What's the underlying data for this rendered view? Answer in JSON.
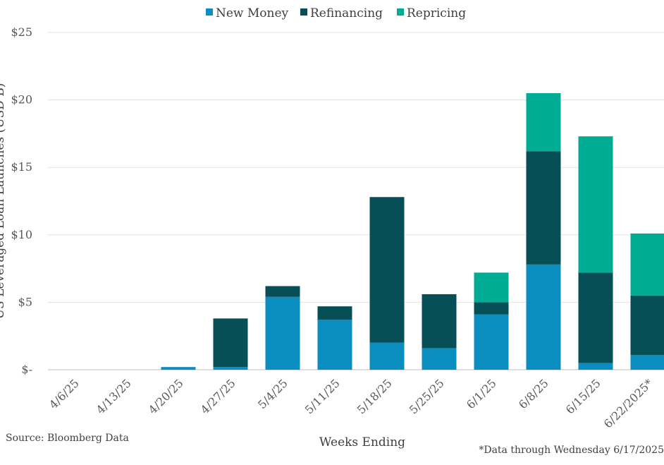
{
  "chart_data": {
    "type": "bar",
    "stacked": true,
    "categories": [
      "4/6/25",
      "4/13/25",
      "4/20/25",
      "4/27/25",
      "5/4/25",
      "5/11/25",
      "5/18/25",
      "5/25/25",
      "6/1/25",
      "6/8/25",
      "6/15/25",
      "6/22/2025*"
    ],
    "series": [
      {
        "name": "New Money",
        "color": "#0A8DBF",
        "values": [
          0,
          0,
          0.2,
          0.2,
          5.4,
          3.7,
          2.0,
          1.6,
          4.1,
          7.8,
          0.5,
          1.1
        ]
      },
      {
        "name": "Refinancing",
        "color": "#074F57",
        "values": [
          0,
          0,
          0,
          3.6,
          0.8,
          1.0,
          10.8,
          4.0,
          0.9,
          8.4,
          6.7,
          4.4
        ]
      },
      {
        "name": "Repricing",
        "color": "#00AC94",
        "values": [
          0,
          0,
          0,
          0,
          0,
          0,
          0,
          0,
          2.2,
          4.3,
          10.1,
          4.6
        ]
      }
    ],
    "ylabel": "US Leveraged Loan Launches (USD B)",
    "xlabel": "Weeks Ending",
    "ylim": [
      0,
      25
    ],
    "yticks": [
      0,
      5,
      10,
      15,
      20,
      25
    ],
    "ytick_labels": [
      "$-",
      "$5",
      "$10",
      "$15",
      "$20",
      "$25"
    ],
    "grid": true,
    "legend_position": "top"
  },
  "source_note": "Source: Bloomberg Data",
  "footnote": "*Data through Wednesday 6/17/2025"
}
